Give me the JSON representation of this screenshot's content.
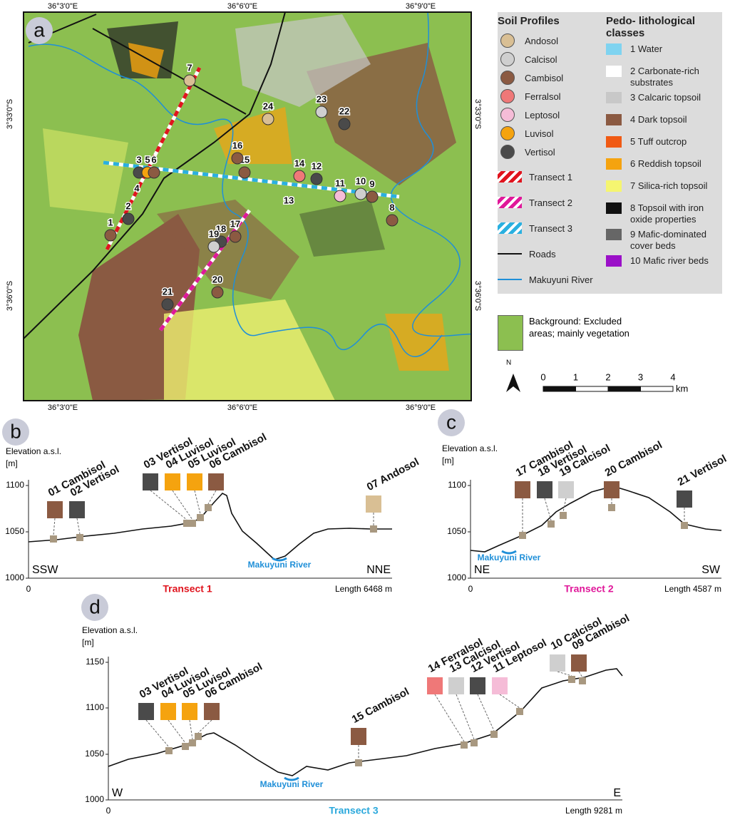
{
  "map": {
    "panel": "a",
    "lon_labels": [
      "36°3'0\"E",
      "36°6'0\"E",
      "36°9'0\"E"
    ],
    "lat_labels": [
      "3°33'0\"S",
      "3°36'0\"S"
    ],
    "points": [
      "1",
      "2",
      "3",
      "4",
      "5",
      "6",
      "7",
      "8",
      "9",
      "10",
      "11",
      "12",
      "13",
      "14",
      "15",
      "16",
      "17",
      "18",
      "19",
      "20",
      "21",
      "22",
      "23",
      "24"
    ]
  },
  "legend": {
    "soil_title": "Soil Profiles",
    "soils": [
      "Andosol",
      "Calcisol",
      "Cambisol",
      "Ferralsol",
      "Leptosol",
      "Luvisol",
      "Vertisol"
    ],
    "lines": [
      "Transect 1",
      "Transect 2",
      "Transect 3",
      "Roads",
      "Makuyuni River"
    ],
    "classes_title": "Pedo- lithological classes",
    "classes": [
      "1 Water",
      "2 Carbonate-rich substrates",
      "3 Calcaric topsoil",
      "4 Dark topsoil",
      "5 Tuff outcrop",
      "6 Reddish topsoil",
      "7 Silica-rich topsoil",
      "8 Topsoil with iron oxide properties",
      "9 Mafic-dominated cover beds",
      "10 Mafic river beds"
    ],
    "background": "Background: Excluded areas; mainly vegetation",
    "north": "N",
    "scale": [
      "0",
      "1",
      "2",
      "3",
      "4"
    ],
    "scale_unit": "km"
  },
  "profiles": [
    {
      "panel": "b",
      "y_label": "Elevation a.s.l.",
      "y_unit": "[m]",
      "yticks": [
        "1000",
        "1050",
        "1100"
      ],
      "x_start": "0",
      "length": "Length 6468 m",
      "left": "SSW",
      "right": "NNE",
      "title": "Transect 1",
      "river": "Makuyuni River",
      "soils": [
        "01 Cambisol",
        "02 Vertisol",
        "03 Vertisol",
        "04 Luvisol",
        "05 Luvisol",
        "06 Cambisol",
        "07 Andosol"
      ]
    },
    {
      "panel": "c",
      "y_label": "Elevation a.s.l.",
      "y_unit": "[m]",
      "yticks": [
        "1000",
        "1050",
        "1100"
      ],
      "x_start": "0",
      "length": "Length 4587 m",
      "left": "NE",
      "right": "SW",
      "title": "Transect 2",
      "river": "Makuyuni River",
      "soils": [
        "17 Cambisol",
        "18 Vertisol",
        "19 Calcisol",
        "20 Cambisol",
        "21 Vertisol"
      ]
    },
    {
      "panel": "d",
      "y_label": "Elevation a.s.l.",
      "y_unit": "[m]",
      "yticks": [
        "1000",
        "1050",
        "1100",
        "1150"
      ],
      "x_start": "0",
      "length": "Length 9281 m",
      "left": "W",
      "right": "E",
      "title": "Transect 3",
      "river": "Makuyuni River",
      "soils": [
        "03 Vertisol",
        "04 Luvisol",
        "05 Luvisol",
        "06 Cambisol",
        "15 Cambisol",
        "14 Ferralsol",
        "13 Calcisol",
        "12 Vertisol",
        "11 Leptosol",
        "10 Calcisol",
        "09 Cambisol"
      ]
    }
  ]
}
